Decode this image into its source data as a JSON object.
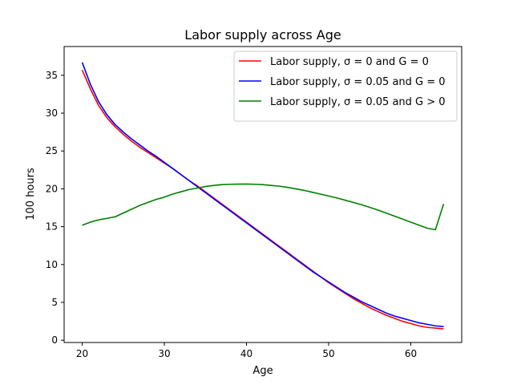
{
  "chart_data": {
    "type": "line",
    "title": "Labor supply across Age",
    "xlabel": "Age",
    "ylabel": "100 hours",
    "xlim": [
      17.8,
      66.2
    ],
    "ylim": [
      -0.3,
      38.8
    ],
    "xticks": [
      20,
      30,
      40,
      50,
      60
    ],
    "yticks": [
      0,
      5,
      10,
      15,
      20,
      25,
      30,
      35
    ],
    "grid": false,
    "legend_position": "top-right",
    "series": [
      {
        "name": "Labor supply, σ = 0 and G = 0",
        "color": "#ff0000",
        "x": [
          20,
          21,
          22,
          23,
          24,
          25,
          26,
          27,
          28,
          29,
          30,
          31,
          32,
          33,
          34,
          35,
          36,
          37,
          38,
          39,
          40,
          41,
          42,
          43,
          44,
          45,
          46,
          47,
          48,
          49,
          50,
          51,
          52,
          53,
          54,
          55,
          56,
          57,
          58,
          59,
          60,
          61,
          62,
          63,
          64
        ],
        "y": [
          35.7,
          33.2,
          31.0,
          29.4,
          28.2,
          27.2,
          26.3,
          25.5,
          24.8,
          24.1,
          23.4,
          22.7,
          21.9,
          21.1,
          20.4,
          19.6,
          18.8,
          18.0,
          17.2,
          16.4,
          15.6,
          14.8,
          14.0,
          13.2,
          12.4,
          11.6,
          10.8,
          10.0,
          9.2,
          8.4,
          7.6,
          6.9,
          6.2,
          5.5,
          4.9,
          4.3,
          3.8,
          3.3,
          2.9,
          2.5,
          2.2,
          1.9,
          1.7,
          1.6,
          1.5
        ]
      },
      {
        "name": "Labor supply, σ = 0.05 and G = 0",
        "color": "#0000ff",
        "x": [
          20,
          21,
          22,
          23,
          24,
          25,
          26,
          27,
          28,
          29,
          30,
          31,
          32,
          33,
          34,
          35,
          36,
          37,
          38,
          39,
          40,
          41,
          42,
          43,
          44,
          45,
          46,
          47,
          48,
          49,
          50,
          51,
          52,
          53,
          54,
          55,
          56,
          57,
          58,
          59,
          60,
          61,
          62,
          63,
          64
        ],
        "y": [
          36.7,
          33.8,
          31.5,
          29.8,
          28.5,
          27.5,
          26.6,
          25.8,
          25.0,
          24.3,
          23.5,
          22.7,
          21.9,
          21.1,
          20.3,
          19.5,
          18.7,
          17.9,
          17.1,
          16.3,
          15.5,
          14.7,
          13.9,
          13.1,
          12.3,
          11.5,
          10.7,
          9.9,
          9.1,
          8.4,
          7.7,
          7.0,
          6.3,
          5.7,
          5.1,
          4.6,
          4.1,
          3.6,
          3.2,
          2.9,
          2.6,
          2.3,
          2.1,
          1.9,
          1.8
        ]
      },
      {
        "name": "Labor supply, σ = 0.05 and G > 0",
        "color": "#008000",
        "x": [
          20,
          21,
          22,
          23,
          24,
          25,
          26,
          27,
          28,
          29,
          30,
          31,
          32,
          33,
          34,
          35,
          36,
          37,
          38,
          39,
          40,
          41,
          42,
          43,
          44,
          45,
          46,
          47,
          48,
          49,
          50,
          51,
          52,
          53,
          54,
          55,
          56,
          57,
          58,
          59,
          60,
          61,
          62,
          63,
          64
        ],
        "y": [
          15.2,
          15.6,
          15.9,
          16.1,
          16.3,
          16.8,
          17.3,
          17.8,
          18.2,
          18.6,
          18.9,
          19.3,
          19.6,
          19.9,
          20.1,
          20.3,
          20.45,
          20.55,
          20.6,
          20.62,
          20.63,
          20.6,
          20.55,
          20.45,
          20.35,
          20.2,
          20.0,
          19.8,
          19.55,
          19.3,
          19.05,
          18.8,
          18.5,
          18.2,
          17.9,
          17.55,
          17.2,
          16.8,
          16.4,
          16.0,
          15.6,
          15.2,
          14.8,
          14.6,
          18.0
        ]
      }
    ]
  }
}
